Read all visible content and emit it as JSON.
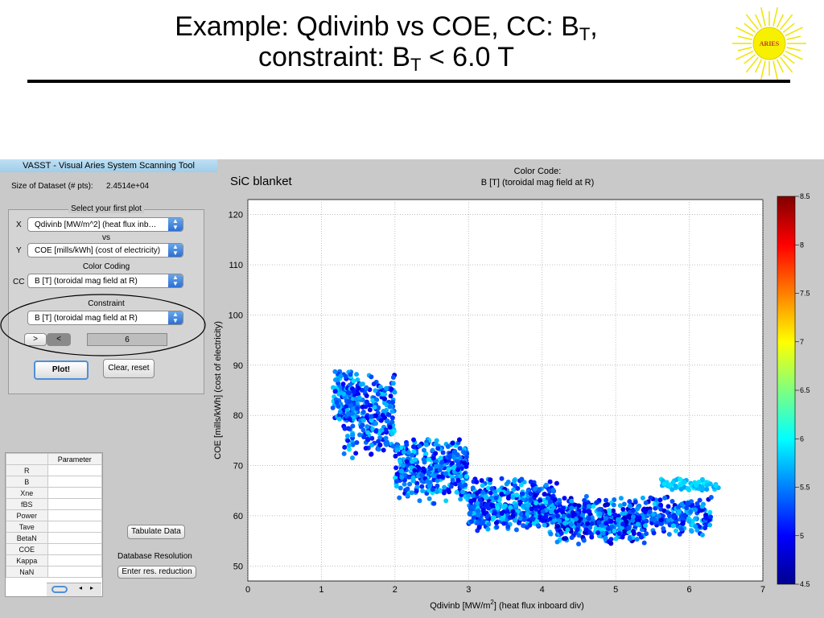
{
  "slide": {
    "title_line1_pre": "Example: Qdivinb vs COE, CC: B",
    "title_line1_sub": "T",
    "title_line1_post": ",",
    "title_line2_pre": "constraint: B",
    "title_line2_sub": "T",
    "title_line2_post": " < 6.0 T",
    "logo_text": "ARIES",
    "colors": {
      "rule": "#000000",
      "logo_sun": "#f7f000",
      "logo_text": "#c0392b"
    }
  },
  "app": {
    "window_title": "VASST - Visual Aries System Scanning Tool",
    "dataset_label": "Size of Dataset (# pts):",
    "dataset_value": "2.4514e+04",
    "select_title": "Select your first plot",
    "x_label": "X",
    "x_value": "Qdivinb [MW/m^2] (heat flux inb…",
    "vs_label": "vs",
    "y_label": "Y",
    "y_value": "COE [mills/kWh] (cost of electricity)",
    "cc_title": "Color Coding",
    "cc_label": "CC",
    "cc_value": "B [T] (toroidal mag field at R)",
    "constraint_title": "Constraint",
    "constraint_value": "B [T] (toroidal mag field at R)",
    "gt_label": ">",
    "lt_label": "<",
    "constraint_input": "6",
    "plot_button": "Plot!",
    "clear_button": "Clear, reset",
    "table_header": "Parameter",
    "parameters": [
      "R",
      "B",
      "Xne",
      "fBS",
      "Power",
      "Tave",
      "BetaN",
      "COE",
      "Kappa",
      "NaN"
    ],
    "tabulate_button": "Tabulate Data",
    "resolution_label": "Database Resolution",
    "resolution_button": "Enter res. reduction"
  },
  "chart_data": {
    "type": "scatter",
    "annotation": "SiC blanket",
    "colorbar_title": "Color Code:",
    "colorbar_subtitle": "B [T] (toroidal mag field at R)",
    "xlabel_pre": "Qdivinb [MW/m",
    "xlabel_sup": "2",
    "xlabel_post": "] (heat flux inboard div)",
    "ylabel": "COE [mills/kWh] (cost of electricity)",
    "xlim": [
      0,
      7
    ],
    "ylim": [
      47,
      123
    ],
    "xticks": [
      0,
      1,
      2,
      3,
      4,
      5,
      6,
      7
    ],
    "yticks": [
      50,
      60,
      70,
      80,
      90,
      100,
      110,
      120
    ],
    "clim": [
      4.5,
      8.5
    ],
    "cticks": [
      4.5,
      5,
      5.5,
      6,
      6.5,
      7,
      7.5,
      8,
      8.5
    ],
    "grid": true,
    "colormap": "jet",
    "point_regions": [
      {
        "x_range": [
          1.15,
          1.5
        ],
        "y_center": 84,
        "y_spread": 6,
        "c_range": [
          5.0,
          5.9
        ]
      },
      {
        "x_range": [
          1.3,
          2.0
        ],
        "y_center": 80,
        "y_spread": 9,
        "c_range": [
          4.9,
          5.9
        ]
      },
      {
        "x_range": [
          2.0,
          3.0
        ],
        "y_center": 69,
        "y_spread": 7,
        "c_range": [
          4.9,
          5.9
        ]
      },
      {
        "x_range": [
          3.0,
          4.2
        ],
        "y_center": 62,
        "y_spread": 6,
        "c_range": [
          4.8,
          5.9
        ]
      },
      {
        "x_range": [
          4.2,
          5.4
        ],
        "y_center": 59,
        "y_spread": 5,
        "c_range": [
          4.7,
          5.9
        ]
      },
      {
        "x_range": [
          5.4,
          6.3
        ],
        "y_center": 60,
        "y_spread": 4,
        "c_range": [
          4.8,
          5.9
        ]
      },
      {
        "x_range": [
          5.6,
          6.4
        ],
        "y_center": 66,
        "y_spread": 1.5,
        "c_range": [
          5.6,
          5.95
        ]
      }
    ],
    "points_per_region": [
      120,
      260,
      380,
      480,
      420,
      200,
      60
    ]
  }
}
